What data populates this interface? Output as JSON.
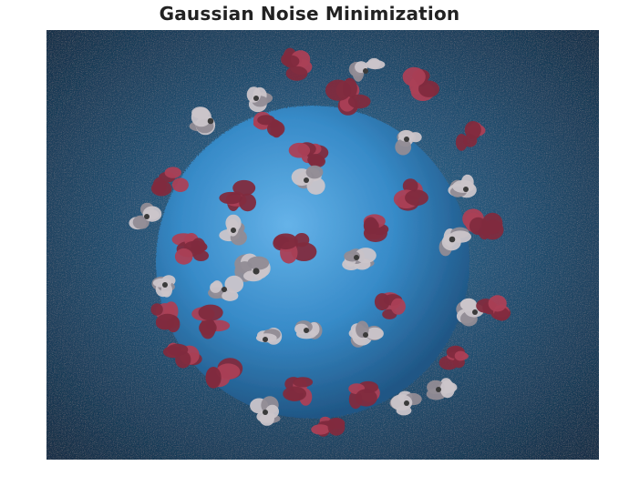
{
  "figure": {
    "title": "Gaussian Noise Minimization"
  },
  "image": {
    "subject": "virus-particle-illustration",
    "colors": {
      "background_center": "#2a6e9c",
      "background_edge": "#0b2740",
      "sphere_light": "#5fb0e8",
      "sphere_mid": "#2f86c6",
      "sphere_dark": "#174f80",
      "spike_red": "#7b2236",
      "spike_red_light": "#a8384f",
      "spike_gray": "#c9c3c8",
      "spike_gray_dark": "#8d8790"
    }
  }
}
